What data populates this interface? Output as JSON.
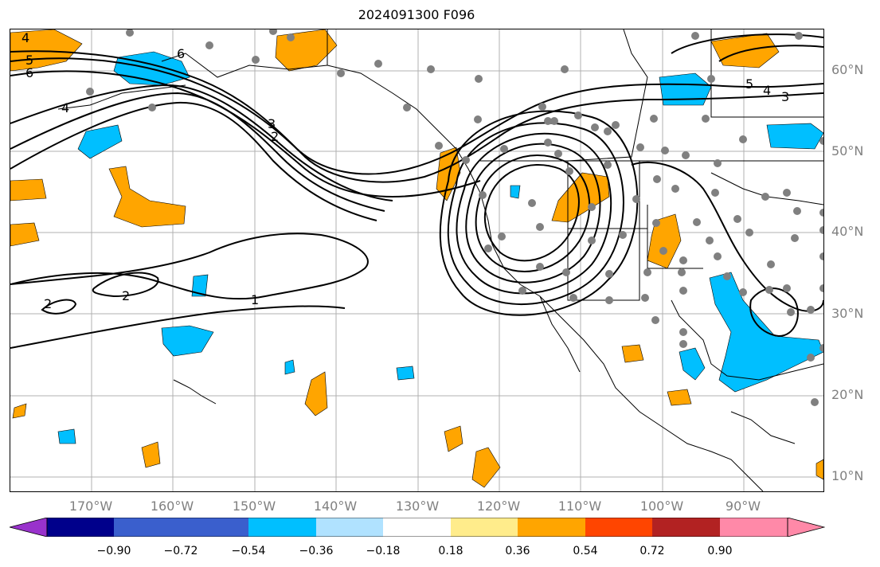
{
  "title": "2024091300 F096",
  "map": {
    "lat_labels": [
      "60°N",
      "50°N",
      "40°N",
      "30°N",
      "20°N",
      "10°N"
    ],
    "lon_labels": [
      "170°W",
      "160°W",
      "150°W",
      "140°W",
      "130°W",
      "120°W",
      "110°W",
      "100°W",
      "90°W"
    ],
    "contour_labels": [
      "4",
      "5",
      "6",
      "6",
      "4",
      "3",
      "2",
      "5",
      "4",
      "3",
      "2",
      "2",
      "1"
    ],
    "colors": {
      "positive_fill": "#ffa500",
      "negative_fill": "#00bfff",
      "station_dot": "#808080",
      "contour": "#000000"
    },
    "station_dots": "visible"
  },
  "colorbar": {
    "extend": "both",
    "colors": [
      "#9932cc",
      "#00008b",
      "#3a5fcd",
      "#00bfff",
      "#b0e2ff",
      "#ffffff",
      "#ffec8b",
      "#ffa500",
      "#ff4500",
      "#b22222",
      "#ff89a8"
    ],
    "tick_labels": [
      "−0.90",
      "−0.72",
      "−0.54",
      "−0.36",
      "−0.18",
      "0.18",
      "0.36",
      "0.54",
      "0.72",
      "0.90"
    ]
  }
}
